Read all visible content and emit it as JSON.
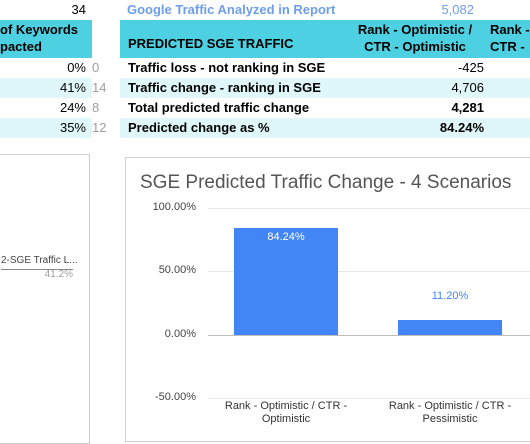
{
  "left_table": {
    "top_value": "34",
    "header_line1": "of Keywords",
    "header_line2": "pacted",
    "rows": [
      {
        "pct": "0%",
        "count": "0"
      },
      {
        "pct": "41%",
        "count": "14"
      },
      {
        "pct": "24%",
        "count": "8"
      },
      {
        "pct": "35%",
        "count": "12"
      }
    ]
  },
  "main_table": {
    "top_label": "Google Traffic Analyzed in Report",
    "top_value": "5,082",
    "header_title": "PREDICTED SGE TRAFFIC",
    "col1_line1": "Rank - Optimistic /",
    "col1_line2": "CTR - Optimistic",
    "col2_line1": "Rank -",
    "col2_line2": "CTR - ",
    "rows": [
      {
        "label": "Traffic loss - not ranking in SGE",
        "value": "-425",
        "bold": false
      },
      {
        "label": "Traffic change - ranking in SGE",
        "value": "4,706",
        "bold": false
      },
      {
        "label": "Total predicted traffic change",
        "value": "4,281",
        "bold": true
      },
      {
        "label": "Predicted change as %",
        "value": "84.24%",
        "bold": true
      }
    ]
  },
  "left_chart": {
    "legend_label": "2-SGE Traffic L...",
    "legend_value": "41.2%"
  },
  "chart_data": {
    "type": "bar",
    "title": "SGE Predicted Traffic Change - 4 Scenarios",
    "categories": [
      "Rank - Optimistic / CTR - Optimistic",
      "Rank - Optimistic / CTR - Pessimistic"
    ],
    "category_lines": [
      [
        "Rank - Optimistic / CTR -",
        "Optimistic"
      ],
      [
        "Rank - Optimistic / CTR -",
        "Pessimistic"
      ]
    ],
    "values": [
      84.24,
      11.2
    ],
    "data_labels": [
      "84.24%",
      "11.20%"
    ],
    "ylim": [
      -50,
      100
    ],
    "yticks": [
      100,
      50,
      0,
      -50
    ],
    "ytick_labels": [
      "100.00%",
      "50.00%",
      "0.00%",
      "-50.00%"
    ],
    "bar_color": "#4285f4",
    "grid": true
  }
}
